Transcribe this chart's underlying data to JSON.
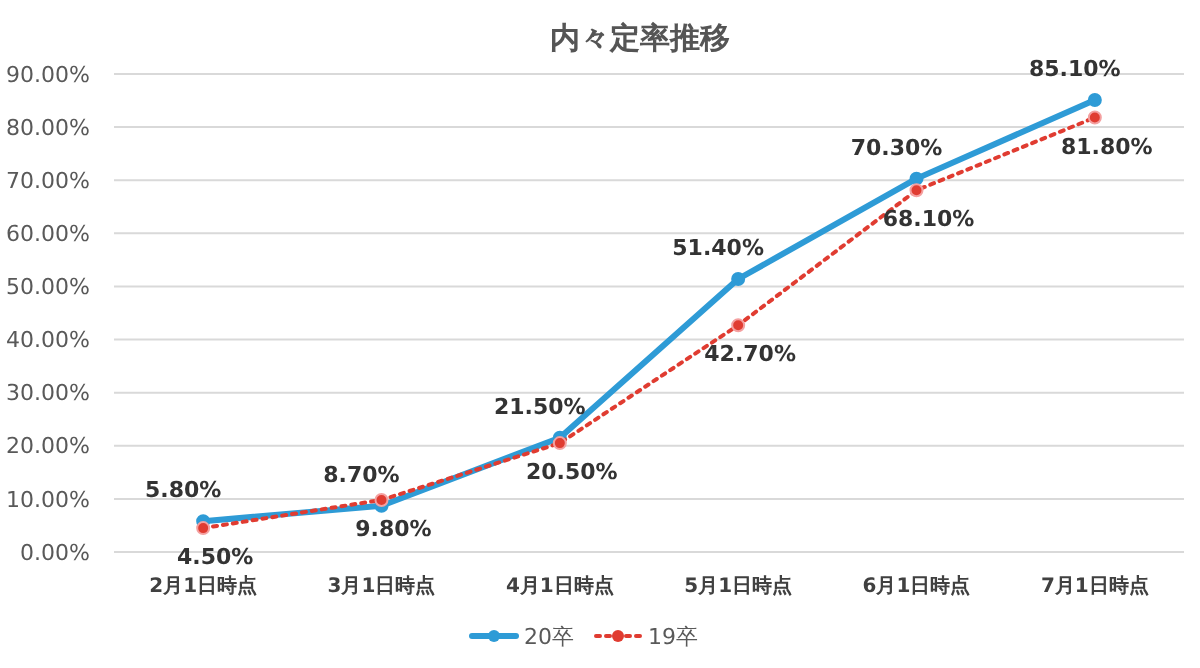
{
  "chart_data": {
    "type": "line",
    "title": "内々定率推移",
    "categories": [
      "2月1日時点",
      "3月1日時点",
      "4月1日時点",
      "5月1日時点",
      "6月1日時点",
      "7月1日時点"
    ],
    "series": [
      {
        "name": "20卒",
        "color": "#2e9bd6",
        "line_style": "solid",
        "values": [
          5.8,
          8.7,
          21.5,
          51.4,
          70.3,
          85.1
        ],
        "value_labels": [
          "5.80%",
          "8.70%",
          "21.50%",
          "51.40%",
          "70.30%",
          "85.10%"
        ]
      },
      {
        "name": "19卒",
        "color": "#e03c31",
        "line_style": "dotted",
        "values": [
          4.5,
          9.8,
          20.5,
          42.7,
          68.1,
          81.8
        ],
        "value_labels": [
          "4.50%",
          "9.80%",
          "20.50%",
          "42.70%",
          "68.10%",
          "81.80%"
        ]
      }
    ],
    "ylim": [
      0,
      90
    ],
    "yticks": [
      {
        "value": 0,
        "label": "0.00%"
      },
      {
        "value": 10,
        "label": "10.00%"
      },
      {
        "value": 20,
        "label": "20.00%"
      },
      {
        "value": 30,
        "label": "30.00%"
      },
      {
        "value": 40,
        "label": "40.00%"
      },
      {
        "value": 50,
        "label": "50.00%"
      },
      {
        "value": 60,
        "label": "60.00%"
      },
      {
        "value": 70,
        "label": "70.00%"
      },
      {
        "value": 80,
        "label": "80.00%"
      },
      {
        "value": 90,
        "label": "90.00%"
      }
    ],
    "grid": "y",
    "legend": "bottom",
    "marker": "circle"
  }
}
